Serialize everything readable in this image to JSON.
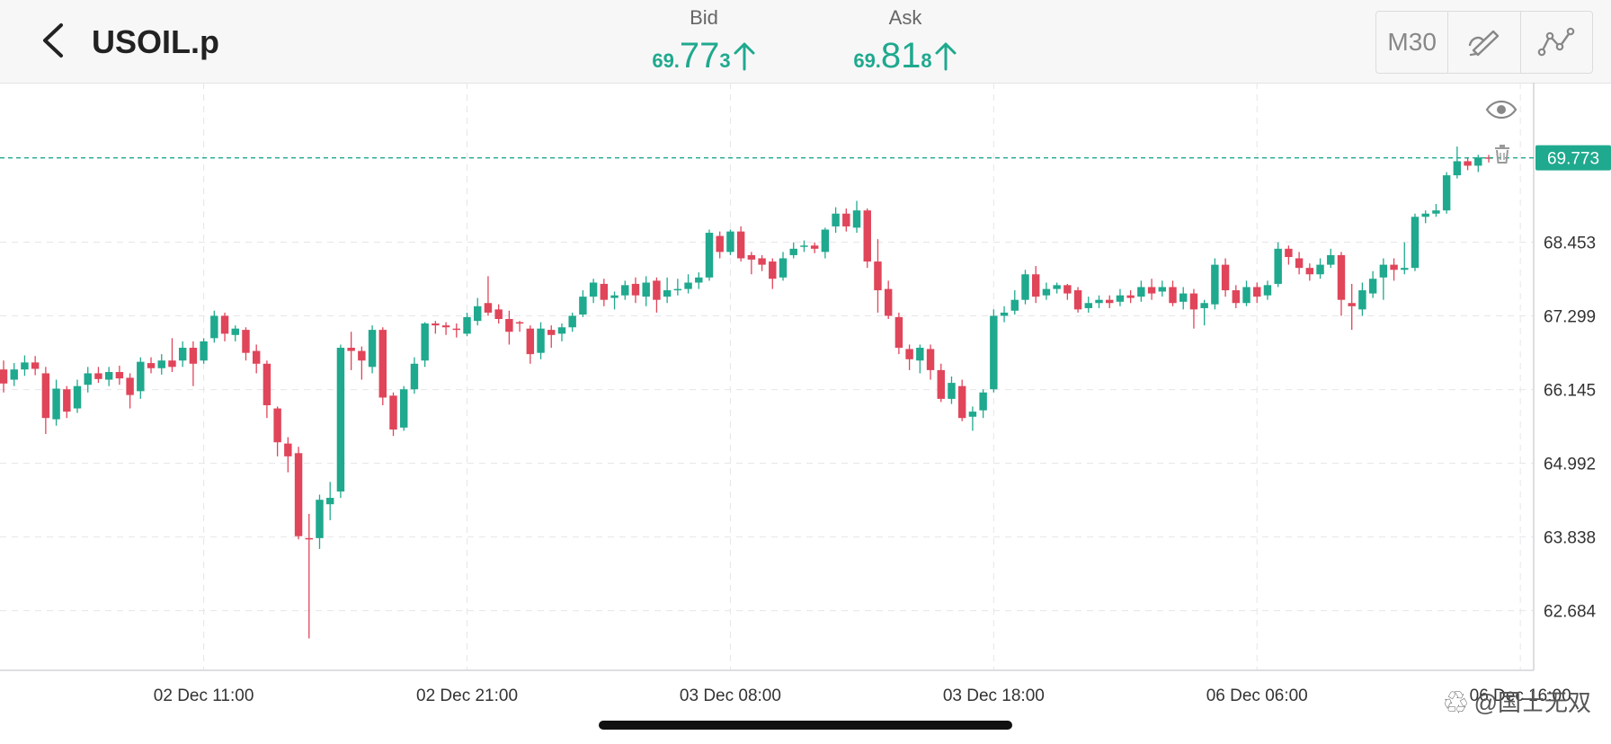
{
  "header": {
    "symbol": "USOIL.p",
    "bid": {
      "label": "Bid",
      "prefix": "69.",
      "big": "77",
      "last": "3"
    },
    "ask": {
      "label": "Ask",
      "prefix": "69.",
      "big": "81",
      "last": "8"
    },
    "timeframe": "M30"
  },
  "watermark": "@国士无双",
  "colors": {
    "up": "#1fa98e",
    "down": "#e0455a",
    "price_tag_bg": "#1fa98e"
  },
  "chart_data": {
    "type": "candlestick",
    "price_ticks": [
      "68.453",
      "67.299",
      "66.145",
      "64.992",
      "63.838",
      "62.684"
    ],
    "time_ticks": [
      "02 Dec 11:00",
      "02 Dec 21:00",
      "03 Dec 08:00",
      "03 Dec 18:00",
      "06 Dec 06:00",
      "06 Dec 16:00"
    ],
    "current_price_label": "69.773",
    "ylim": [
      61.75,
      70.95
    ],
    "candles": [
      [
        66.46,
        66.24,
        66.6,
        66.1
      ],
      [
        66.3,
        66.46,
        66.56,
        66.2
      ],
      [
        66.46,
        66.57,
        66.68,
        66.36
      ],
      [
        66.57,
        66.47,
        66.67,
        66.37
      ],
      [
        66.4,
        65.7,
        66.5,
        65.45
      ],
      [
        65.68,
        66.16,
        66.3,
        65.58
      ],
      [
        66.15,
        65.8,
        66.2,
        65.7
      ],
      [
        65.85,
        66.2,
        66.3,
        65.78
      ],
      [
        66.22,
        66.4,
        66.5,
        66.1
      ],
      [
        66.4,
        66.31,
        66.5,
        66.25
      ],
      [
        66.3,
        66.42,
        66.5,
        66.2
      ],
      [
        66.42,
        66.32,
        66.52,
        66.22
      ],
      [
        66.33,
        66.06,
        66.4,
        65.85
      ],
      [
        66.12,
        66.58,
        66.65,
        66.0
      ],
      [
        66.56,
        66.48,
        66.65,
        66.4
      ],
      [
        66.48,
        66.6,
        66.7,
        66.38
      ],
      [
        66.6,
        66.5,
        66.95,
        66.42
      ],
      [
        66.6,
        66.8,
        66.9,
        66.5
      ],
      [
        66.8,
        66.55,
        66.9,
        66.2
      ],
      [
        66.6,
        66.9,
        66.95,
        66.55
      ],
      [
        66.95,
        67.3,
        67.38,
        66.88
      ],
      [
        67.3,
        67.02,
        67.35,
        66.9
      ],
      [
        67.0,
        67.1,
        67.15,
        66.9
      ],
      [
        67.08,
        66.72,
        67.12,
        66.6
      ],
      [
        66.75,
        66.55,
        66.85,
        66.4
      ],
      [
        66.55,
        65.9,
        66.6,
        65.7
      ],
      [
        65.85,
        65.32,
        65.88,
        65.1
      ],
      [
        65.3,
        65.1,
        65.4,
        64.85
      ],
      [
        65.15,
        63.85,
        65.25,
        63.8
      ],
      [
        63.82,
        63.8,
        64.2,
        62.25
      ],
      [
        63.82,
        64.42,
        64.5,
        63.65
      ],
      [
        64.35,
        64.45,
        64.7,
        64.1
      ],
      [
        64.55,
        66.8,
        66.85,
        64.45
      ],
      [
        66.8,
        66.75,
        67.05,
        66.45
      ],
      [
        66.75,
        66.6,
        66.82,
        66.3
      ],
      [
        66.5,
        67.08,
        67.15,
        66.4
      ],
      [
        67.08,
        66.02,
        67.12,
        65.9
      ],
      [
        66.05,
        65.52,
        66.1,
        65.42
      ],
      [
        65.55,
        66.15,
        66.2,
        65.5
      ],
      [
        66.15,
        66.55,
        66.65,
        66.08
      ],
      [
        66.6,
        67.18,
        67.2,
        66.5
      ],
      [
        67.18,
        67.15,
        67.22,
        67.02
      ],
      [
        67.15,
        67.12,
        67.2,
        67.0
      ],
      [
        67.1,
        67.08,
        67.18,
        66.96
      ],
      [
        67.02,
        67.28,
        67.35,
        66.98
      ],
      [
        67.22,
        67.45,
        67.58,
        67.15
      ],
      [
        67.5,
        67.35,
        67.92,
        67.3
      ],
      [
        67.4,
        67.25,
        67.48,
        67.18
      ],
      [
        67.25,
        67.05,
        67.38,
        66.85
      ],
      [
        67.2,
        67.18,
        67.22,
        67.05
      ],
      [
        67.1,
        66.7,
        67.15,
        66.55
      ],
      [
        66.72,
        67.1,
        67.2,
        66.62
      ],
      [
        67.08,
        67.0,
        67.15,
        66.8
      ],
      [
        67.02,
        67.12,
        67.18,
        66.9
      ],
      [
        67.12,
        67.3,
        67.35,
        67.05
      ],
      [
        67.32,
        67.6,
        67.7,
        67.28
      ],
      [
        67.6,
        67.82,
        67.88,
        67.5
      ],
      [
        67.8,
        67.55,
        67.88,
        67.45
      ],
      [
        67.58,
        67.62,
        67.68,
        67.4
      ],
      [
        67.62,
        67.78,
        67.85,
        67.55
      ],
      [
        67.8,
        67.62,
        67.9,
        67.5
      ],
      [
        67.6,
        67.82,
        67.92,
        67.45
      ],
      [
        67.85,
        67.55,
        67.9,
        67.35
      ],
      [
        67.6,
        67.7,
        67.9,
        67.5
      ],
      [
        67.7,
        67.72,
        67.88,
        67.62
      ],
      [
        67.72,
        67.82,
        67.95,
        67.65
      ],
      [
        67.82,
        67.9,
        67.98,
        67.72
      ],
      [
        67.9,
        68.6,
        68.65,
        67.85
      ],
      [
        68.55,
        68.3,
        68.62,
        68.2
      ],
      [
        68.3,
        68.62,
        68.65,
        68.25
      ],
      [
        68.62,
        68.2,
        68.7,
        68.15
      ],
      [
        68.25,
        68.18,
        68.3,
        67.95
      ],
      [
        68.2,
        68.1,
        68.25,
        68.0
      ],
      [
        68.15,
        67.88,
        68.2,
        67.72
      ],
      [
        67.9,
        68.2,
        68.3,
        67.85
      ],
      [
        68.25,
        68.35,
        68.45,
        68.2
      ],
      [
        68.38,
        68.4,
        68.48,
        68.3
      ],
      [
        68.4,
        68.35,
        68.45,
        68.28
      ],
      [
        68.3,
        68.65,
        68.68,
        68.2
      ],
      [
        68.7,
        68.9,
        69.0,
        68.6
      ],
      [
        68.9,
        68.7,
        68.98,
        68.62
      ],
      [
        68.68,
        68.95,
        69.1,
        68.6
      ],
      [
        68.95,
        68.15,
        68.98,
        68.05
      ],
      [
        68.15,
        67.7,
        68.5,
        67.35
      ],
      [
        67.72,
        67.3,
        67.85,
        67.25
      ],
      [
        67.28,
        66.8,
        67.35,
        66.7
      ],
      [
        66.78,
        66.62,
        66.85,
        66.45
      ],
      [
        66.6,
        66.8,
        66.85,
        66.4
      ],
      [
        66.78,
        66.45,
        66.85,
        66.3
      ],
      [
        66.45,
        66.0,
        66.55,
        65.95
      ],
      [
        66.0,
        66.25,
        66.35,
        65.92
      ],
      [
        66.2,
        65.7,
        66.3,
        65.65
      ],
      [
        65.72,
        65.8,
        65.88,
        65.5
      ],
      [
        65.82,
        66.1,
        66.15,
        65.7
      ],
      [
        66.15,
        67.3,
        67.4,
        66.1
      ],
      [
        67.3,
        67.35,
        67.45,
        67.2
      ],
      [
        67.38,
        67.55,
        67.7,
        67.32
      ],
      [
        67.55,
        67.95,
        68.02,
        67.48
      ],
      [
        67.95,
        67.6,
        68.08,
        67.5
      ],
      [
        67.62,
        67.72,
        67.82,
        67.55
      ],
      [
        67.72,
        67.78,
        67.82,
        67.65
      ],
      [
        67.78,
        67.65,
        67.8,
        67.55
      ],
      [
        67.7,
        67.4,
        67.75,
        67.35
      ],
      [
        67.42,
        67.5,
        67.6,
        67.35
      ],
      [
        67.5,
        67.55,
        67.62,
        67.42
      ],
      [
        67.55,
        67.5,
        67.62,
        67.42
      ],
      [
        67.52,
        67.62,
        67.72,
        67.45
      ],
      [
        67.62,
        67.58,
        67.7,
        67.5
      ],
      [
        67.6,
        67.75,
        67.85,
        67.52
      ],
      [
        67.75,
        67.65,
        67.88,
        67.55
      ],
      [
        67.68,
        67.75,
        67.85,
        67.6
      ],
      [
        67.75,
        67.5,
        67.85,
        67.45
      ],
      [
        67.52,
        67.65,
        67.75,
        67.4
      ],
      [
        67.65,
        67.4,
        67.72,
        67.1
      ],
      [
        67.42,
        67.5,
        67.55,
        67.15
      ],
      [
        67.48,
        68.1,
        68.2,
        67.4
      ],
      [
        68.1,
        67.7,
        68.2,
        67.6
      ],
      [
        67.7,
        67.5,
        67.78,
        67.42
      ],
      [
        67.5,
        67.75,
        67.85,
        67.45
      ],
      [
        67.75,
        67.6,
        67.82,
        67.5
      ],
      [
        67.62,
        67.78,
        67.85,
        67.55
      ],
      [
        67.8,
        68.35,
        68.45,
        67.75
      ],
      [
        68.35,
        68.22,
        68.4,
        68.1
      ],
      [
        68.2,
        68.05,
        68.3,
        67.95
      ],
      [
        68.05,
        67.95,
        68.12,
        67.85
      ],
      [
        67.95,
        68.1,
        68.2,
        67.88
      ],
      [
        68.1,
        68.25,
        68.35,
        68.05
      ],
      [
        68.25,
        67.55,
        68.3,
        67.3
      ],
      [
        67.5,
        67.45,
        67.8,
        67.08
      ],
      [
        67.4,
        67.7,
        67.82,
        67.3
      ],
      [
        67.65,
        67.88,
        68.0,
        67.58
      ],
      [
        67.9,
        68.1,
        68.2,
        67.55
      ],
      [
        68.1,
        68.02,
        68.2,
        67.85
      ],
      [
        68.02,
        68.05,
        68.45,
        67.95
      ],
      [
        68.05,
        68.85,
        68.9,
        68.0
      ],
      [
        68.85,
        68.9,
        68.95,
        68.75
      ],
      [
        68.9,
        68.95,
        69.05,
        68.85
      ],
      [
        68.95,
        69.5,
        69.55,
        68.9
      ],
      [
        69.5,
        69.72,
        69.95,
        69.45
      ],
      [
        69.72,
        69.65,
        69.78,
        69.58
      ],
      [
        69.65,
        69.78,
        69.82,
        69.55
      ],
      [
        69.78,
        69.77,
        69.82,
        69.7
      ]
    ]
  }
}
